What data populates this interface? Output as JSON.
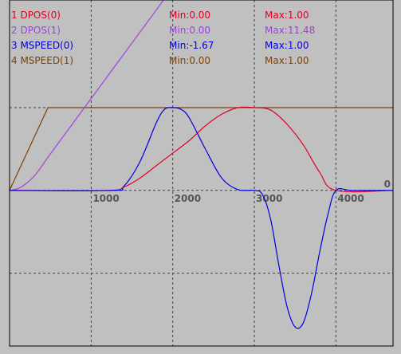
{
  "chart_data": {
    "type": "line",
    "background": "#c0c0c0",
    "grid": true,
    "x_ticks": [
      1000,
      2000,
      3000,
      4000
    ],
    "x_tick_labels": [
      "1000",
      "2000",
      "3000",
      "4000"
    ],
    "xlim": [
      0,
      4700
    ],
    "y_zero_label": "0",
    "y_plot_range": [
      -1.88,
      2.3
    ],
    "y_gridlines": [
      -1,
      1
    ],
    "legend": [
      {
        "label": "1 DPOS(0)",
        "min": "Min:0.00",
        "max": "Max:1.00",
        "color": "#e00020"
      },
      {
        "label": "2 DPOS(1)",
        "min": "Min:0.00",
        "max": "Max:11.48",
        "color": "#a040e0"
      },
      {
        "label": "3 MSPEED(0)",
        "min": "Min:-1.67",
        "max": "Max:1.00",
        "color": "#0000e0"
      },
      {
        "label": "4 MSPEED(1)",
        "min": "Min:0.00",
        "max": "Max:1.00",
        "color": "#804000"
      }
    ],
    "series": [
      {
        "name": "1 DPOS(0)",
        "color": "#e00020",
        "x": [
          0,
          1200,
          1400,
          1600,
          1800,
          2000,
          2200,
          2400,
          2600,
          2800,
          3000,
          3200,
          3400,
          3600,
          3800,
          4000,
          4700
        ],
        "y": [
          0,
          0,
          0.04,
          0.15,
          0.3,
          0.45,
          0.6,
          0.78,
          0.92,
          1,
          1,
          0.97,
          0.8,
          0.55,
          0.22,
          0,
          0
        ]
      },
      {
        "name": "2 DPOS(1)",
        "color": "#a040e0",
        "x": [
          0,
          100,
          200,
          300,
          400,
          500,
          1000,
          1500,
          2000,
          2330
        ],
        "y": [
          0,
          0.02,
          0.08,
          0.17,
          0.3,
          0.44,
          1.11,
          1.78,
          2.45,
          2.9
        ]
      },
      {
        "name": "3 MSPEED(0)",
        "color": "#0000e0",
        "x": [
          0,
          1250,
          1400,
          1600,
          1800,
          1900,
          2000,
          2100,
          2200,
          2400,
          2600,
          2800,
          3000,
          3100,
          3200,
          3300,
          3400,
          3500,
          3600,
          3700,
          3800,
          3900,
          4000,
          4200,
          4700
        ],
        "y": [
          0,
          0,
          0.05,
          0.35,
          0.82,
          0.98,
          1,
          0.98,
          0.88,
          0.5,
          0.15,
          0.01,
          0,
          -0.05,
          -0.35,
          -0.9,
          -1.4,
          -1.65,
          -1.6,
          -1.25,
          -0.75,
          -0.3,
          0,
          0,
          0
        ]
      },
      {
        "name": "4 MSPEED(1)",
        "color": "#804000",
        "x": [
          0,
          470,
          4700
        ],
        "y": [
          0,
          1,
          1
        ]
      }
    ]
  }
}
